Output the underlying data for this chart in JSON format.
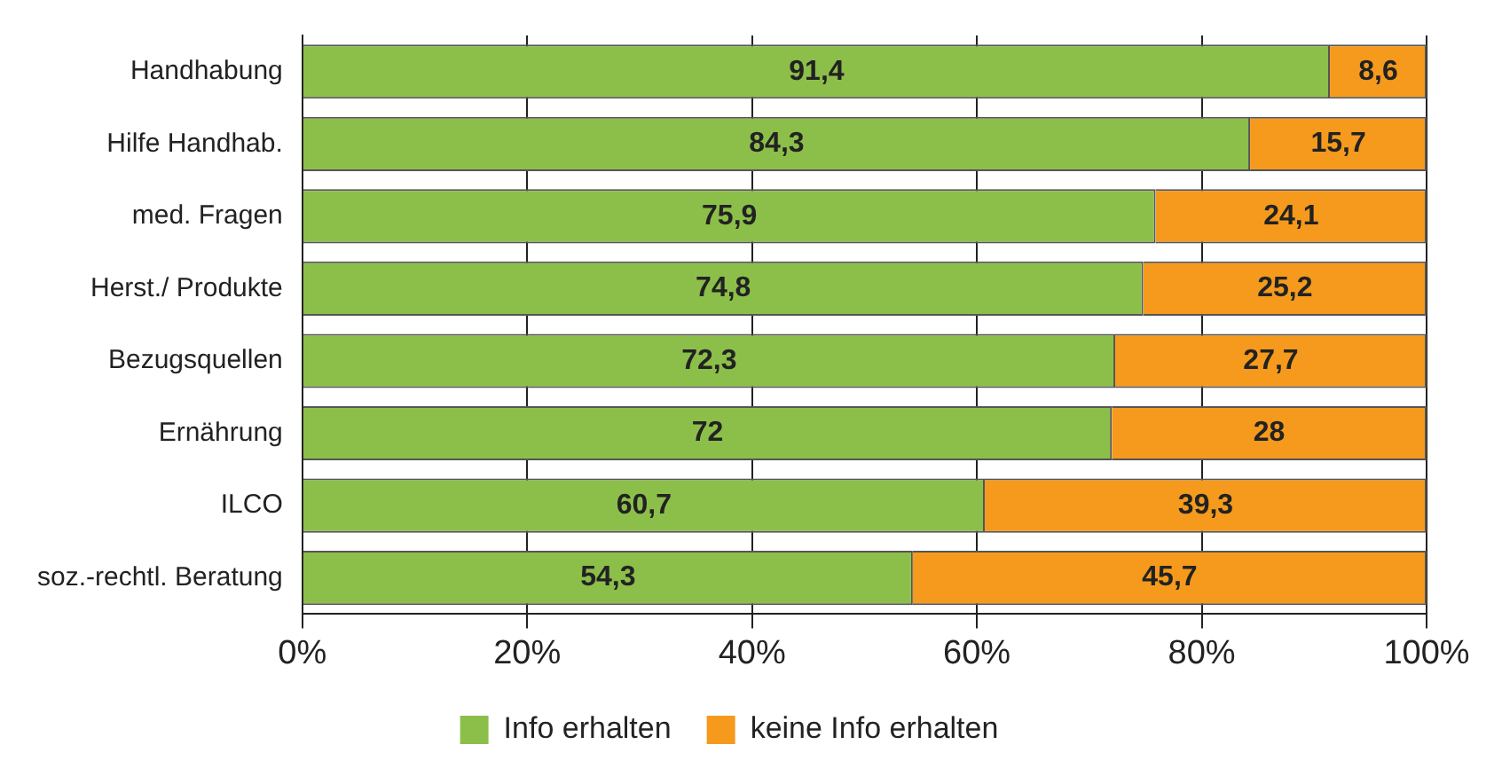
{
  "chart_data": {
    "type": "bar",
    "orientation": "horizontal",
    "stacked": true,
    "categories": [
      "Handhabung",
      "Hilfe Handhab.",
      "med. Fragen",
      "Herst./ Produkte",
      "Bezugsquellen",
      "Ernährung",
      "ILCO",
      "soz.-rechtl. Beratung"
    ],
    "series": [
      {
        "name": "Info erhalten",
        "color": "#8cbf4a",
        "values": [
          91.4,
          84.3,
          75.9,
          74.8,
          72.3,
          72,
          60.7,
          54.3
        ],
        "value_labels": [
          "91,4",
          "84,3",
          "75,9",
          "74,8",
          "72,3",
          "72",
          "60,7",
          "54,3"
        ]
      },
      {
        "name": "keine Info erhalten",
        "color": "#f59a1c",
        "values": [
          8.6,
          15.7,
          24.1,
          25.2,
          27.7,
          28,
          39.3,
          45.7
        ],
        "value_labels": [
          "8,6",
          "15,7",
          "24,1",
          "25,2",
          "27,7",
          "28",
          "39,3",
          "45,7"
        ]
      }
    ],
    "xlim": [
      0,
      100
    ],
    "xticks": [
      {
        "value": 0,
        "label": "0%"
      },
      {
        "value": 20,
        "label": "20%"
      },
      {
        "value": 40,
        "label": "40%"
      },
      {
        "value": 60,
        "label": "60%"
      },
      {
        "value": 80,
        "label": "80%"
      },
      {
        "value": 100,
        "label": "100%"
      }
    ],
    "grid": "x",
    "legend": "bottom"
  }
}
